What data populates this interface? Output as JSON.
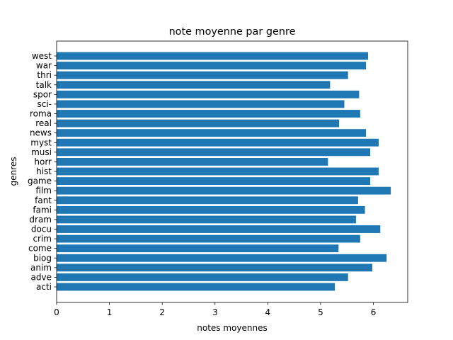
{
  "chart_data": {
    "type": "bar",
    "orientation": "horizontal",
    "title": "note moyenne par genre",
    "xlabel": "notes moyennes",
    "ylabel": "genres",
    "xlim": [
      0,
      6.65
    ],
    "xticks": [
      0,
      1,
      2,
      3,
      4,
      5,
      6
    ],
    "grid": false,
    "bar_color": "#1f77b4",
    "categories": [
      "acti",
      "adve",
      "anim",
      "biog",
      "come",
      "crim",
      "docu",
      "dram",
      "fami",
      "fant",
      "film",
      "game",
      "hist",
      "horr",
      "musi",
      "myst",
      "news",
      "real",
      "roma",
      "sci-",
      "spor",
      "talk",
      "thri",
      "war",
      "west"
    ],
    "values": [
      5.27,
      5.52,
      5.98,
      6.25,
      5.34,
      5.75,
      6.13,
      5.67,
      5.84,
      5.71,
      6.33,
      5.94,
      6.1,
      5.14,
      5.94,
      6.1,
      5.86,
      5.35,
      5.75,
      5.45,
      5.73,
      5.18,
      5.52,
      5.86,
      5.9
    ]
  }
}
